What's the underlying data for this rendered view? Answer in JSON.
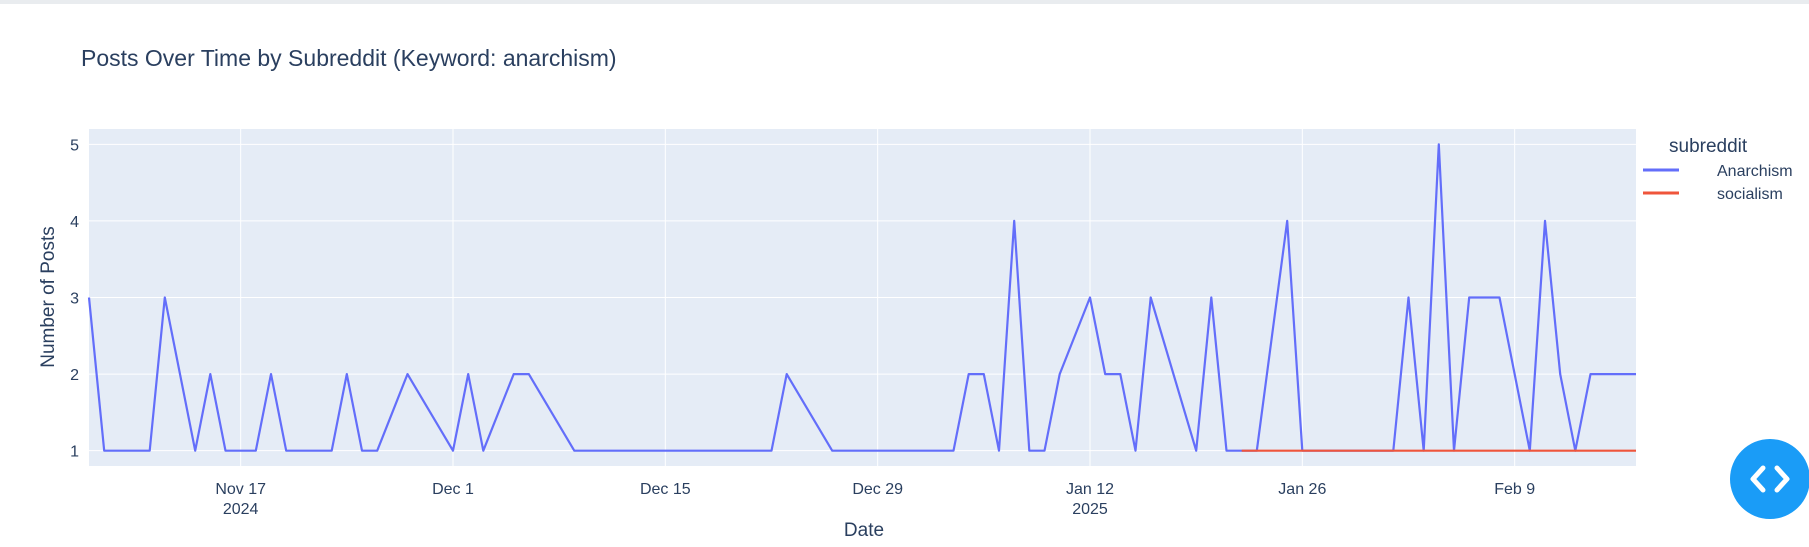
{
  "chart_data": {
    "type": "line",
    "title": "Posts Over Time by Subreddit (Keyword: anarchism)",
    "xlabel": "Date",
    "ylabel": "Number of Posts",
    "x_range": [
      "2024-11-07",
      "2025-02-17"
    ],
    "ylim": [
      0.8,
      5.2
    ],
    "y_ticks": [
      1,
      2,
      3,
      4,
      5
    ],
    "x_ticks": [
      {
        "date": "2024-11-17",
        "label": "Nov 17",
        "sublabel": "2024"
      },
      {
        "date": "2024-12-01",
        "label": "Dec 1",
        "sublabel": ""
      },
      {
        "date": "2024-12-15",
        "label": "Dec 15",
        "sublabel": ""
      },
      {
        "date": "2024-12-29",
        "label": "Dec 29",
        "sublabel": ""
      },
      {
        "date": "2025-01-12",
        "label": "Jan 12",
        "sublabel": "2025"
      },
      {
        "date": "2025-01-26",
        "label": "Jan 26",
        "sublabel": ""
      },
      {
        "date": "2025-02-09",
        "label": "Feb 9",
        "sublabel": ""
      }
    ],
    "grid": true,
    "legend": {
      "title": "subreddit",
      "placement": "right"
    },
    "series": [
      {
        "name": "Anarchism",
        "color": "#636efa",
        "points": [
          [
            "2024-11-07",
            3
          ],
          [
            "2024-11-08",
            1
          ],
          [
            "2024-11-11",
            1
          ],
          [
            "2024-11-12",
            3
          ],
          [
            "2024-11-14",
            1
          ],
          [
            "2024-11-15",
            2
          ],
          [
            "2024-11-16",
            1
          ],
          [
            "2024-11-18",
            1
          ],
          [
            "2024-11-19",
            2
          ],
          [
            "2024-11-20",
            1
          ],
          [
            "2024-11-23",
            1
          ],
          [
            "2024-11-24",
            2
          ],
          [
            "2024-11-25",
            1
          ],
          [
            "2024-11-26",
            1
          ],
          [
            "2024-11-28",
            2
          ],
          [
            "2024-12-01",
            1
          ],
          [
            "2024-12-02",
            2
          ],
          [
            "2024-12-03",
            1
          ],
          [
            "2024-12-05",
            2
          ],
          [
            "2024-12-06",
            2
          ],
          [
            "2024-12-09",
            1
          ],
          [
            "2024-12-22",
            1
          ],
          [
            "2024-12-23",
            2
          ],
          [
            "2024-12-26",
            1
          ],
          [
            "2025-01-03",
            1
          ],
          [
            "2025-01-04",
            2
          ],
          [
            "2025-01-05",
            2
          ],
          [
            "2025-01-06",
            1
          ],
          [
            "2025-01-07",
            4
          ],
          [
            "2025-01-08",
            1
          ],
          [
            "2025-01-09",
            1
          ],
          [
            "2025-01-10",
            2
          ],
          [
            "2025-01-12",
            3
          ],
          [
            "2025-01-13",
            2
          ],
          [
            "2025-01-14",
            2
          ],
          [
            "2025-01-15",
            1
          ],
          [
            "2025-01-16",
            3
          ],
          [
            "2025-01-19",
            1
          ],
          [
            "2025-01-20",
            3
          ],
          [
            "2025-01-21",
            1
          ],
          [
            "2025-01-23",
            1
          ],
          [
            "2025-01-25",
            4
          ],
          [
            "2025-01-26",
            1
          ],
          [
            "2025-02-01",
            1
          ],
          [
            "2025-02-02",
            3
          ],
          [
            "2025-02-03",
            1
          ],
          [
            "2025-02-04",
            5
          ],
          [
            "2025-02-05",
            1
          ],
          [
            "2025-02-06",
            3
          ],
          [
            "2025-02-08",
            3
          ],
          [
            "2025-02-10",
            1
          ],
          [
            "2025-02-11",
            4
          ],
          [
            "2025-02-12",
            2
          ],
          [
            "2025-02-13",
            1
          ],
          [
            "2025-02-14",
            2
          ],
          [
            "2025-02-17",
            2
          ]
        ]
      },
      {
        "name": "socialism",
        "color": "#ef553b",
        "points": [
          [
            "2025-01-22",
            1
          ],
          [
            "2025-01-23",
            1
          ],
          [
            "2025-01-25",
            1
          ],
          [
            "2025-01-26",
            1
          ],
          [
            "2025-01-28",
            1
          ],
          [
            "2025-01-30",
            1
          ],
          [
            "2025-02-01",
            1
          ],
          [
            "2025-02-03",
            1
          ],
          [
            "2025-02-05",
            1
          ],
          [
            "2025-02-07",
            1
          ],
          [
            "2025-02-09",
            1
          ],
          [
            "2025-02-11",
            1
          ],
          [
            "2025-02-13",
            1
          ],
          [
            "2025-02-15",
            1
          ],
          [
            "2025-02-17",
            1
          ]
        ]
      }
    ]
  },
  "toolbar": {
    "fab_icon": "code-icon"
  }
}
